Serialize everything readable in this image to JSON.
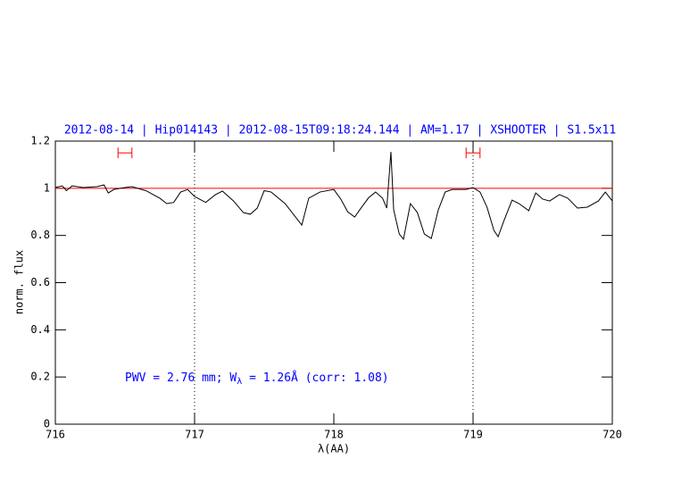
{
  "chart_data": {
    "type": "line",
    "title": "2012-08-14 | Hip014143 | 2012-08-15T09:18:24.144 | AM=1.17 | XSHOOTER | S1.5x11",
    "xlabel": "λ(AA)",
    "ylabel": "norm. flux",
    "annotation": [
      "PWV = 2.76 mm; W",
      "λ",
      " = 1.26Å (corr: 1.08)"
    ],
    "xlim": [
      716,
      720
    ],
    "ylim": [
      0,
      1.2
    ],
    "xticks": [
      716,
      717,
      718,
      719,
      720
    ],
    "yticks": [
      0,
      0.2,
      0.4,
      0.6,
      0.8,
      1,
      1.2
    ],
    "vlines": [
      717,
      719
    ],
    "hline": {
      "value": 1,
      "color": "#ff0000"
    },
    "ranges": {
      "color": "#ff0000",
      "y": 1.15,
      "x": [
        [
          716.45,
          716.55
        ],
        [
          718.95,
          719.05
        ]
      ]
    },
    "series": [
      {
        "color": "#000000",
        "x": [
          716.0,
          716.05,
          716.08,
          716.12,
          716.2,
          716.3,
          716.35,
          716.38,
          716.42,
          716.5,
          716.55,
          716.65,
          716.75,
          716.8,
          716.85,
          716.9,
          716.95,
          717.0,
          717.08,
          717.15,
          717.2,
          717.28,
          717.35,
          717.4,
          717.45,
          717.5,
          717.55,
          717.65,
          717.72,
          717.77,
          717.82,
          717.9,
          718.0,
          718.05,
          718.1,
          718.15,
          718.2,
          718.25,
          718.3,
          718.35,
          718.38,
          718.41,
          718.43,
          718.47,
          718.5,
          718.55,
          718.6,
          718.65,
          718.7,
          718.75,
          718.8,
          718.85,
          718.95,
          719.0,
          719.05,
          719.1,
          719.15,
          719.18,
          719.22,
          719.28,
          719.33,
          719.4,
          719.45,
          719.5,
          719.55,
          719.62,
          719.68,
          719.75,
          719.82,
          719.9,
          719.95,
          720.0
        ],
        "values": [
          1.003,
          1.01,
          0.99,
          1.01,
          1.003,
          1.007,
          1.014,
          0.98,
          0.995,
          1.003,
          1.007,
          0.99,
          0.958,
          0.935,
          0.94,
          0.984,
          0.995,
          0.965,
          0.94,
          0.973,
          0.988,
          0.946,
          0.897,
          0.89,
          0.916,
          0.99,
          0.984,
          0.935,
          0.882,
          0.844,
          0.958,
          0.984,
          0.995,
          0.954,
          0.9,
          0.878,
          0.92,
          0.96,
          0.984,
          0.958,
          0.916,
          1.154,
          0.908,
          0.806,
          0.784,
          0.935,
          0.897,
          0.806,
          0.787,
          0.908,
          0.984,
          0.995,
          0.995,
          1.003,
          0.984,
          0.92,
          0.821,
          0.795,
          0.86,
          0.95,
          0.935,
          0.905,
          0.98,
          0.954,
          0.946,
          0.973,
          0.958,
          0.916,
          0.92,
          0.946,
          0.984,
          0.946
        ]
      }
    ]
  }
}
